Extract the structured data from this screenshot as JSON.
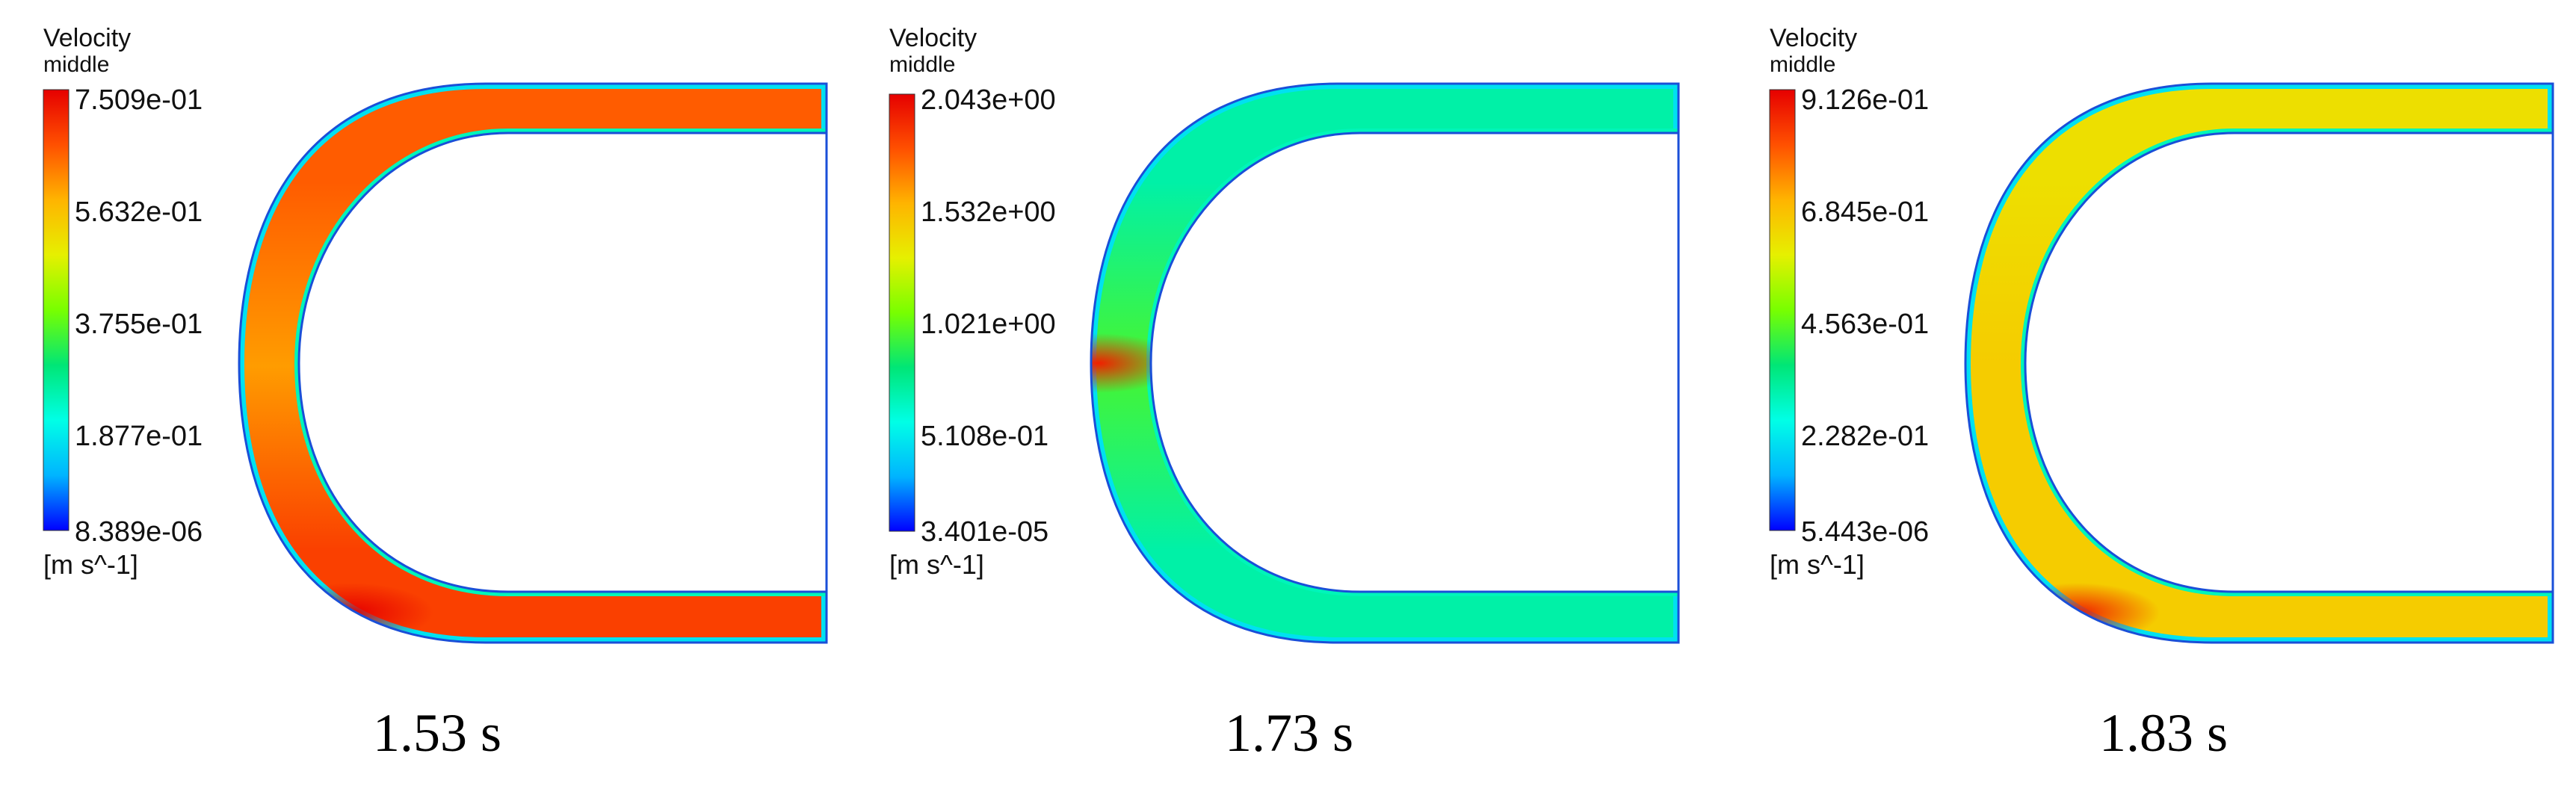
{
  "colors": {
    "colormap": [
      "#0000ff",
      "#00b4ff",
      "#00ffe6",
      "#00e676",
      "#78ff00",
      "#e6f000",
      "#ffb400",
      "#ff5000",
      "#e60000"
    ],
    "outline": "#1a4fd8"
  },
  "panels": [
    {
      "legend": {
        "title": "Velocity",
        "subtitle": "middle",
        "ticks": [
          "7.509e-01",
          "5.632e-01",
          "3.755e-01",
          "1.877e-01",
          "8.389e-06"
        ],
        "unit": "[m s^-1]"
      },
      "caption": "1.53 s",
      "flow": {
        "upper_arm_level": 0.86,
        "lower_arm_level": 0.9,
        "bend_level": 0.78,
        "hotspot_level": 1.0,
        "hotspot_location": "lower bend exit"
      }
    },
    {
      "legend": {
        "title": "Velocity",
        "subtitle": "middle",
        "ticks": [
          "2.043e+00",
          "1.532e+00",
          "1.021e+00",
          "5.108e-01",
          "3.401e-05"
        ],
        "unit": "[m s^-1]"
      },
      "caption": "1.73 s",
      "flow": {
        "upper_arm_level": 0.32,
        "lower_arm_level": 0.32,
        "bend_level": 0.45,
        "hotspot_level": 0.95,
        "hotspot_location": "bend apex"
      }
    },
    {
      "legend": {
        "title": "Velocity",
        "subtitle": "middle",
        "ticks": [
          "9.126e-01",
          "6.845e-01",
          "4.563e-01",
          "2.282e-01",
          "5.443e-06"
        ],
        "unit": "[m s^-1]"
      },
      "caption": "1.83 s",
      "flow": {
        "upper_arm_level": 0.66,
        "lower_arm_level": 0.7,
        "bend_level": 0.7,
        "hotspot_level": 0.95,
        "hotspot_location": "lower bend exit"
      }
    }
  ]
}
